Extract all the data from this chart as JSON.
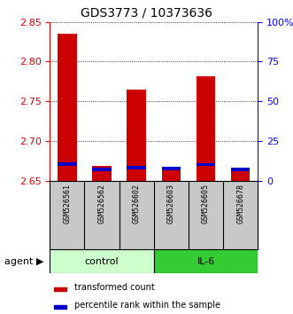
{
  "title": "GDS3773 / 10373636",
  "samples": [
    "GSM526561",
    "GSM526562",
    "GSM526602",
    "GSM526603",
    "GSM526605",
    "GSM526678"
  ],
  "red_values": [
    2.835,
    2.668,
    2.765,
    2.665,
    2.782,
    2.662
  ],
  "blue_values": [
    2.669,
    2.662,
    2.664,
    2.663,
    2.668,
    2.662
  ],
  "ymin": 2.65,
  "ymax": 2.85,
  "yticks": [
    2.65,
    2.7,
    2.75,
    2.8,
    2.85
  ],
  "right_yticks": [
    0,
    25,
    50,
    75,
    100
  ],
  "right_ytick_labels": [
    "0",
    "25",
    "50",
    "75",
    "100%"
  ],
  "bar_width": 0.55,
  "red_color": "#cc0000",
  "blue_color": "#0000cc",
  "control_color": "#ccffcc",
  "il6_color": "#33cc33",
  "legend_red": "transformed count",
  "legend_blue": "percentile rank within the sample",
  "sample_area_bgcolor": "#c8c8c8",
  "title_fontsize": 10,
  "tick_fontsize": 8,
  "sample_fontsize": 6,
  "legend_fontsize": 7
}
